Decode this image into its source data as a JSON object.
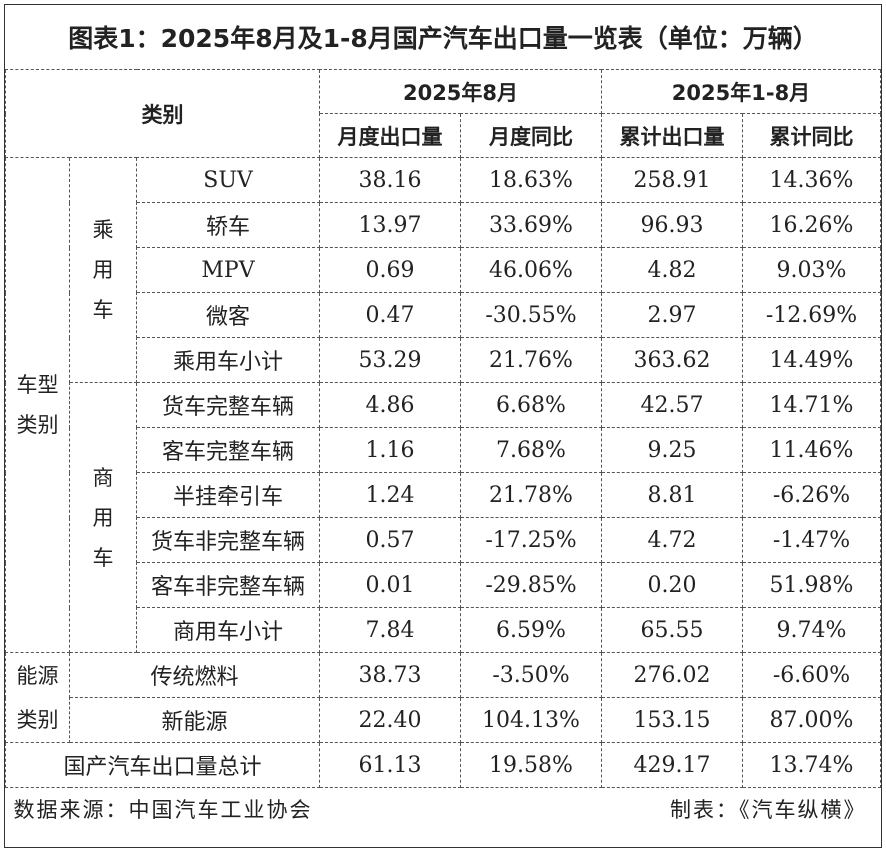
{
  "title": "图表1：2025年8月及1-8月国产汽车出口量一览表（单位：万辆）",
  "header": {
    "category": "类别",
    "period_month": "2025年8月",
    "period_ytd": "2025年1-8月",
    "col_month_volume": "月度出口量",
    "col_month_yoy": "月度同比",
    "col_ytd_volume": "累计出口量",
    "col_ytd_yoy": "累计同比"
  },
  "groups": {
    "vehicle_type": "车型类别",
    "passenger": "乘用车",
    "commercial": "商用车",
    "energy_type": "能源类别"
  },
  "rows": {
    "suv": {
      "name": "SUV",
      "month": "38.16",
      "month_yoy": "18.63%",
      "ytd": "258.91",
      "ytd_yoy": "14.36%"
    },
    "sedan": {
      "name": "轿车",
      "month": "13.97",
      "month_yoy": "33.69%",
      "ytd": "96.93",
      "ytd_yoy": "16.26%"
    },
    "mpv": {
      "name": "MPV",
      "month": "0.69",
      "month_yoy": "46.06%",
      "ytd": "4.82",
      "ytd_yoy": "9.03%"
    },
    "minivan": {
      "name": "微客",
      "month": "0.47",
      "month_yoy": "-30.55%",
      "ytd": "2.97",
      "ytd_yoy": "-12.69%"
    },
    "passenger_subtotal": {
      "name": "乘用车小计",
      "month": "53.29",
      "month_yoy": "21.76%",
      "ytd": "363.62",
      "ytd_yoy": "14.49%"
    },
    "truck_complete": {
      "name": "货车完整车辆",
      "month": "4.86",
      "month_yoy": "6.68%",
      "ytd": "42.57",
      "ytd_yoy": "14.71%"
    },
    "bus_complete": {
      "name": "客车完整车辆",
      "month": "1.16",
      "month_yoy": "7.68%",
      "ytd": "9.25",
      "ytd_yoy": "11.46%"
    },
    "semi_tractor": {
      "name": "半挂牵引车",
      "month": "1.24",
      "month_yoy": "21.78%",
      "ytd": "8.81",
      "ytd_yoy": "-6.26%"
    },
    "truck_incomplete": {
      "name": "货车非完整车辆",
      "month": "0.57",
      "month_yoy": "-17.25%",
      "ytd": "4.72",
      "ytd_yoy": "-1.47%"
    },
    "bus_incomplete": {
      "name": "客车非完整车辆",
      "month": "0.01",
      "month_yoy": "-29.85%",
      "ytd": "0.20",
      "ytd_yoy": "51.98%"
    },
    "commercial_subtotal": {
      "name": "商用车小计",
      "month": "7.84",
      "month_yoy": "6.59%",
      "ytd": "65.55",
      "ytd_yoy": "9.74%"
    },
    "traditional_fuel": {
      "name": "传统燃料",
      "month": "38.73",
      "month_yoy": "-3.50%",
      "ytd": "276.02",
      "ytd_yoy": "-6.60%"
    },
    "new_energy": {
      "name": "新能源",
      "month": "22.40",
      "month_yoy": "104.13%",
      "ytd": "153.15",
      "ytd_yoy": "87.00%"
    },
    "total": {
      "name": "国产汽车出口量总计",
      "month": "61.13",
      "month_yoy": "19.58%",
      "ytd": "429.17",
      "ytd_yoy": "13.74%"
    }
  },
  "footer": {
    "source": "数据来源：中国汽车工业协会",
    "made_by": "制表：《汽车纵横》"
  }
}
